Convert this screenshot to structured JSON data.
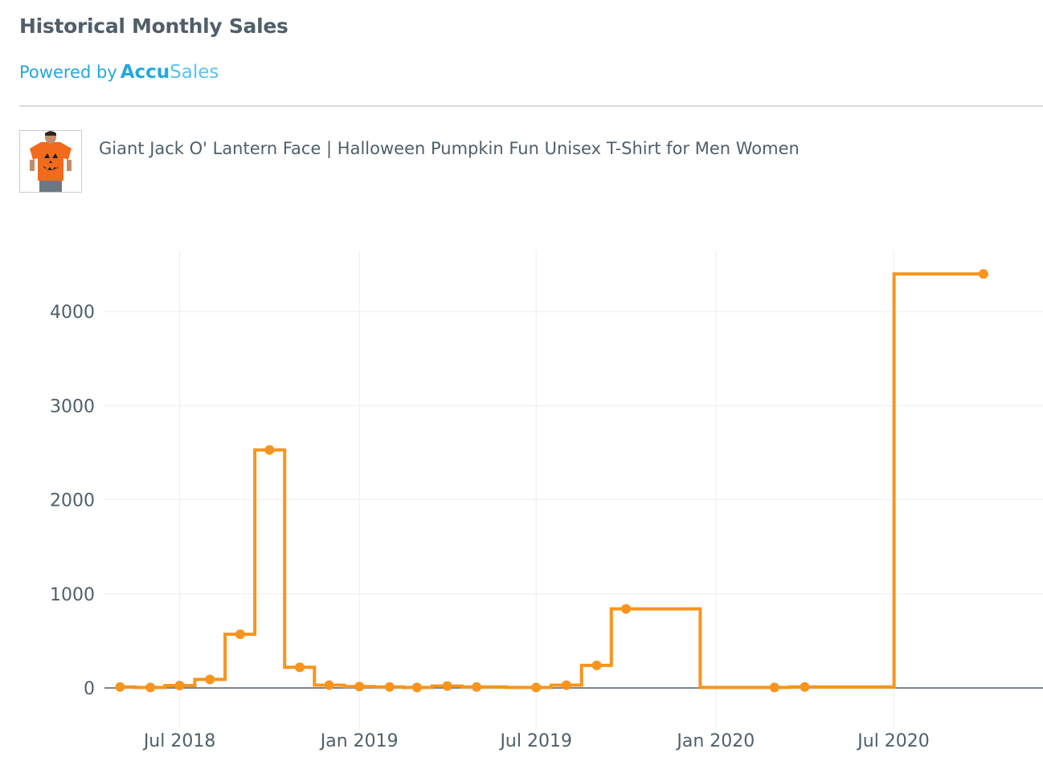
{
  "header": {
    "title": "Historical Monthly Sales",
    "powered_by": "Powered by",
    "brand_part1": "Accu",
    "brand_part2": "Sales"
  },
  "product": {
    "name": "Giant Jack O' Lantern Face | Halloween Pumpkin Fun Unisex T-Shirt for Men Women",
    "thumbnail_icon": "orange-pumpkin-tshirt-person"
  },
  "colors": {
    "line": "#f7941d",
    "grid": "#ecedee",
    "zero_line": "#4f5f69",
    "tick_text": "#4f5f69"
  },
  "chart_data": {
    "type": "line",
    "line_shape": "step",
    "title": "",
    "xlabel": "",
    "ylabel": "",
    "ylim": [
      -350,
      4650
    ],
    "xlim": [
      "2018-04-15",
      "2020-12-01"
    ],
    "grid": true,
    "yticks": [
      0,
      1000,
      2000,
      3000,
      4000
    ],
    "xticks": [
      {
        "date": "2018-07-01",
        "label": "Jul 2018"
      },
      {
        "date": "2019-01-01",
        "label": "Jan 2019"
      },
      {
        "date": "2019-07-01",
        "label": "Jul 2019"
      },
      {
        "date": "2020-01-01",
        "label": "Jan 2020"
      },
      {
        "date": "2020-07-01",
        "label": "Jul 2020"
      }
    ],
    "series": [
      {
        "points": [
          {
            "x": "2018-05-01",
            "y": 10
          },
          {
            "x": "2018-06-01",
            "y": 5
          },
          {
            "x": "2018-07-01",
            "y": 25
          },
          {
            "x": "2018-08-01",
            "y": 90
          },
          {
            "x": "2018-09-01",
            "y": 570
          },
          {
            "x": "2018-10-01",
            "y": 2530
          },
          {
            "x": "2018-11-01",
            "y": 220
          },
          {
            "x": "2018-12-01",
            "y": 30
          },
          {
            "x": "2019-01-01",
            "y": 15
          },
          {
            "x": "2019-02-01",
            "y": 10
          },
          {
            "x": "2019-03-01",
            "y": 5
          },
          {
            "x": "2019-04-01",
            "y": 20
          },
          {
            "x": "2019-05-01",
            "y": 10
          },
          {
            "x": "2019-07-01",
            "y": 5
          },
          {
            "x": "2019-08-01",
            "y": 30
          },
          {
            "x": "2019-09-01",
            "y": 240
          },
          {
            "x": "2019-10-01",
            "y": 840
          },
          {
            "x": "2020-03-01",
            "y": 5
          },
          {
            "x": "2020-04-01",
            "y": 10
          },
          {
            "x": "2020-10-01",
            "y": 4400
          }
        ]
      }
    ]
  }
}
